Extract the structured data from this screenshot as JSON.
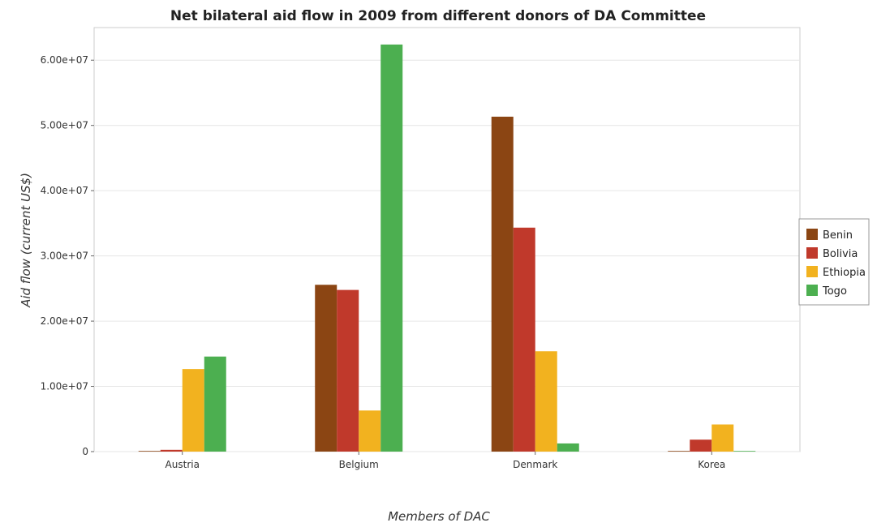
{
  "chart_data": {
    "type": "bar",
    "title": "Net bilateral aid flow in 2009 from different donors of DA Committee",
    "xlabel": "Members of DAC",
    "ylabel": "Aid flow (current US$)",
    "categories": [
      "Austria",
      "Belgium",
      "Denmark",
      "Korea"
    ],
    "ylim": [
      0,
      65000000
    ],
    "yticks": [
      0,
      10000000,
      20000000,
      30000000,
      40000000,
      50000000,
      60000000
    ],
    "ytick_labels": [
      "0",
      "1.00e+07",
      "2.00e+07",
      "3.00e+07",
      "4.00e+07",
      "5.00e+07",
      "6.00e+07"
    ],
    "grid": true,
    "legend_position": "right",
    "series": [
      {
        "name": "Benin",
        "color": "#8B4513",
        "values": [
          30000,
          25570000,
          51340000,
          50000
        ]
      },
      {
        "name": "Bolivia",
        "color": "#c0392b",
        "values": [
          270000,
          24780000,
          34330000,
          1830000
        ]
      },
      {
        "name": "Ethiopia",
        "color": "#f2b21f",
        "values": [
          12660000,
          6300000,
          15380000,
          4160000
        ]
      },
      {
        "name": "Togo",
        "color": "#4caf50",
        "values": [
          14570000,
          62400000,
          1250000,
          90000
        ]
      }
    ]
  }
}
